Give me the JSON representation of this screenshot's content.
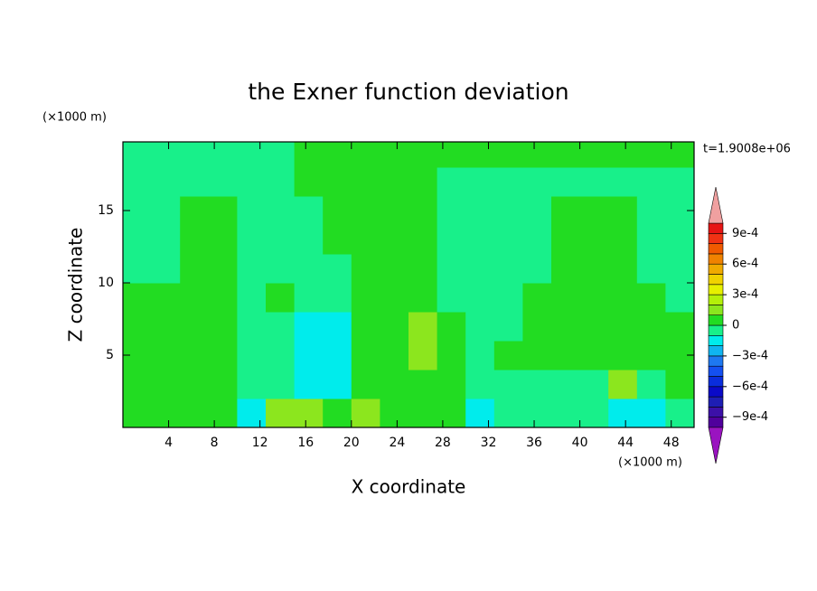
{
  "chart_data": {
    "type": "contour",
    "title": "the Exner function deviation",
    "xlabel": "X coordinate",
    "ylabel": "Z coordinate",
    "x_unit": "(×1000 m)",
    "y_unit": "(×1000 m)",
    "annotation": "t=1.9008e+06",
    "xlim": [
      0,
      50
    ],
    "ylim": [
      0,
      19.75
    ],
    "xticks": [
      4,
      8,
      12,
      16,
      20,
      24,
      28,
      32,
      36,
      40,
      44,
      48
    ],
    "yticks": [
      5,
      10,
      15
    ],
    "x": [
      1.25,
      3.75,
      6.25,
      8.75,
      11.25,
      13.75,
      16.25,
      18.75,
      21.25,
      23.75,
      26.25,
      28.75,
      31.25,
      33.75,
      36.25,
      38.75,
      41.25,
      43.75,
      46.25,
      48.75
    ],
    "z": [
      1,
      3,
      5,
      7,
      9,
      11,
      13,
      15,
      17,
      19
    ],
    "values": [
      [
        5e-05,
        5e-05,
        5e-05,
        5e-05,
        -0.00015,
        0.00015,
        0.00015,
        5e-05,
        0.00015,
        5e-05,
        5e-05,
        5e-05,
        -0.00015,
        -5e-05,
        -5e-05,
        -5e-05,
        -5e-05,
        -0.00015,
        -0.00015,
        -5e-05
      ],
      [
        5e-05,
        5e-05,
        5e-05,
        5e-05,
        -5e-05,
        -5e-05,
        -0.00015,
        -0.00015,
        5e-05,
        5e-05,
        5e-05,
        5e-05,
        -5e-05,
        -5e-05,
        -5e-05,
        -5e-05,
        -5e-05,
        0.00015,
        -5e-05,
        5e-05
      ],
      [
        5e-05,
        5e-05,
        5e-05,
        5e-05,
        -5e-05,
        -5e-05,
        -0.00015,
        -0.00015,
        5e-05,
        5e-05,
        0.00015,
        5e-05,
        -5e-05,
        5e-05,
        5e-05,
        5e-05,
        5e-05,
        5e-05,
        5e-05,
        5e-05
      ],
      [
        5e-05,
        5e-05,
        5e-05,
        5e-05,
        -5e-05,
        -5e-05,
        -0.00015,
        -0.00015,
        5e-05,
        5e-05,
        0.00015,
        5e-05,
        -5e-05,
        -5e-05,
        5e-05,
        5e-05,
        5e-05,
        5e-05,
        5e-05,
        5e-05
      ],
      [
        5e-05,
        5e-05,
        5e-05,
        5e-05,
        -5e-05,
        5e-05,
        -5e-05,
        -5e-05,
        5e-05,
        5e-05,
        5e-05,
        -5e-05,
        -5e-05,
        -5e-05,
        5e-05,
        5e-05,
        5e-05,
        5e-05,
        5e-05,
        -5e-05
      ],
      [
        -5e-05,
        -5e-05,
        5e-05,
        5e-05,
        -5e-05,
        -5e-05,
        -5e-05,
        -5e-05,
        5e-05,
        5e-05,
        5e-05,
        -5e-05,
        -5e-05,
        -5e-05,
        -5e-05,
        5e-05,
        5e-05,
        5e-05,
        -5e-05,
        -5e-05
      ],
      [
        -5e-05,
        -5e-05,
        5e-05,
        5e-05,
        -5e-05,
        -5e-05,
        -5e-05,
        5e-05,
        5e-05,
        5e-05,
        5e-05,
        -5e-05,
        -5e-05,
        -5e-05,
        -5e-05,
        5e-05,
        5e-05,
        5e-05,
        -5e-05,
        -5e-05
      ],
      [
        -5e-05,
        -5e-05,
        5e-05,
        5e-05,
        -5e-05,
        -5e-05,
        -5e-05,
        5e-05,
        5e-05,
        5e-05,
        5e-05,
        -5e-05,
        -5e-05,
        -5e-05,
        -5e-05,
        5e-05,
        5e-05,
        5e-05,
        -5e-05,
        -5e-05
      ],
      [
        -5e-05,
        -5e-05,
        -5e-05,
        -5e-05,
        -5e-05,
        -5e-05,
        5e-05,
        5e-05,
        5e-05,
        5e-05,
        5e-05,
        -5e-05,
        -5e-05,
        -5e-05,
        -5e-05,
        -5e-05,
        -5e-05,
        -5e-05,
        -5e-05,
        -5e-05
      ],
      [
        -5e-05,
        -5e-05,
        -5e-05,
        -5e-05,
        -5e-05,
        -5e-05,
        5e-05,
        5e-05,
        5e-05,
        5e-05,
        5e-05,
        5e-05,
        5e-05,
        5e-05,
        5e-05,
        5e-05,
        5e-05,
        5e-05,
        5e-05,
        5e-05
      ]
    ],
    "levels": [
      -0.001,
      -0.0009,
      -0.0008,
      -0.0007,
      -0.0006,
      -0.0005,
      -0.0004,
      -0.0003,
      -0.0002,
      -0.0001,
      0,
      0.0001,
      0.0002,
      0.0003,
      0.0004,
      0.0005,
      0.0006,
      0.0007,
      0.0008,
      0.0009,
      0.001
    ],
    "colors": [
      "#9a14c0",
      "#50009c",
      "#3c10a8",
      "#1e1eb4",
      "#0a0ac8",
      "#0a2ddc",
      "#1450f0",
      "#1e78f0",
      "#10b4f0",
      "#00ecec",
      "#18f08a",
      "#22dc22",
      "#8ce61e",
      "#b4f00a",
      "#e6f000",
      "#f0d200",
      "#f0aa00",
      "#f08200",
      "#f05a00",
      "#f03214",
      "#e61414",
      "#f0a0a0"
    ],
    "colorbar_ticks": [
      {
        "value": -0.0009,
        "label": "−9e-4"
      },
      {
        "value": -0.0006,
        "label": "−6e-4"
      },
      {
        "value": -0.0003,
        "label": "−3e-4"
      },
      0,
      {
        "value": 0.0003,
        "label": "3e-4"
      },
      {
        "value": 0.0006,
        "label": "6e-4"
      },
      {
        "value": 0.0009,
        "label": "9e-4"
      }
    ]
  }
}
